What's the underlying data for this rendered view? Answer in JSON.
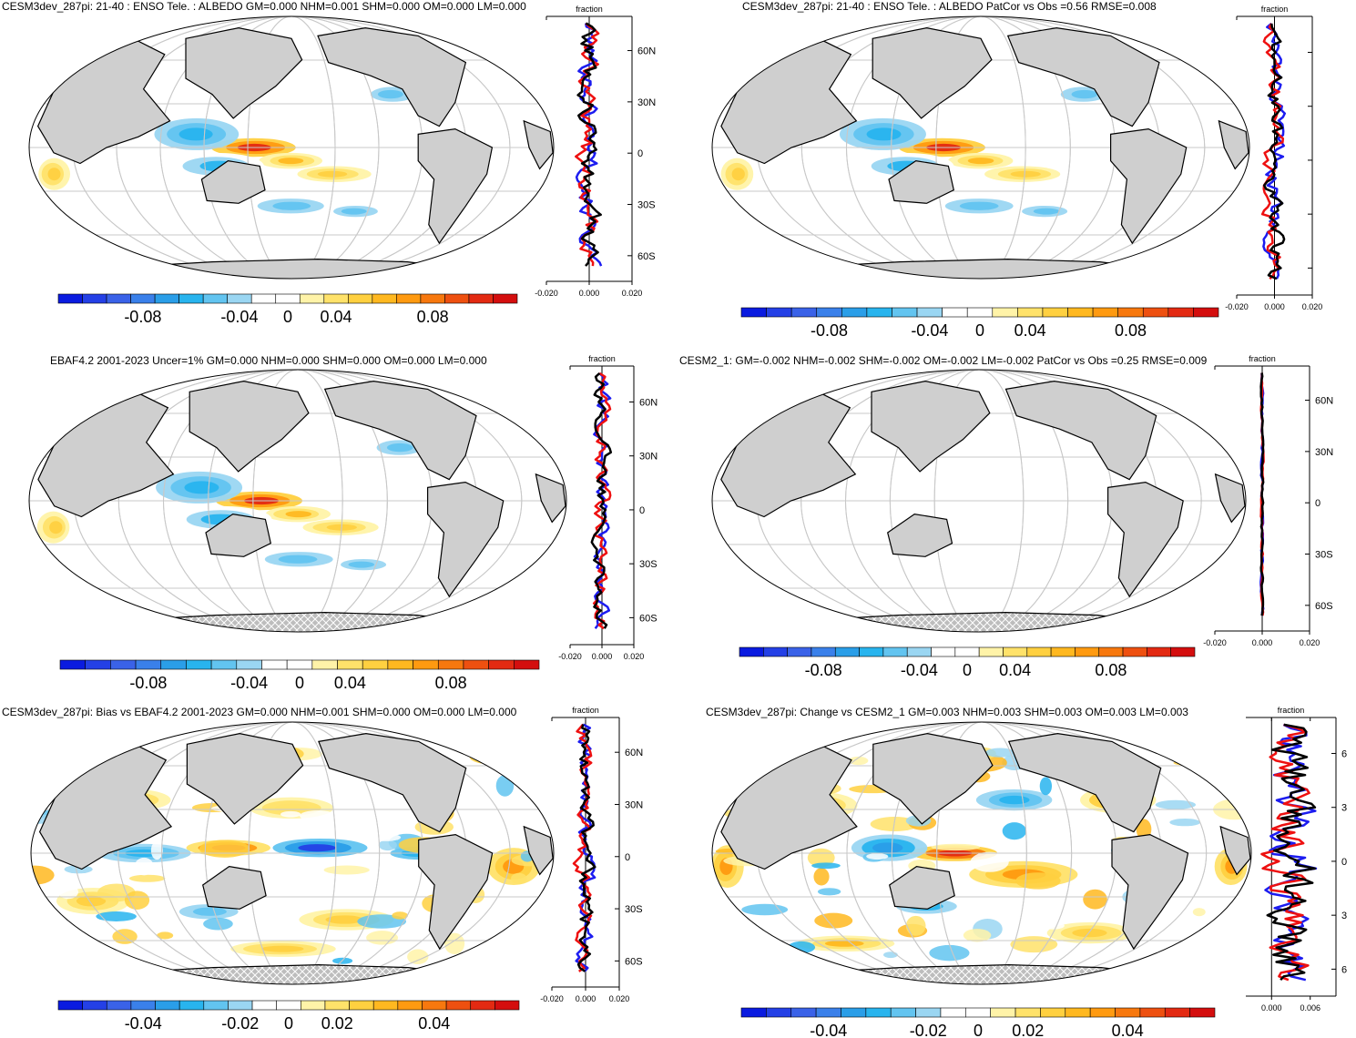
{
  "colors": {
    "ocean": "#ffffff",
    "land": "#cfcfcf",
    "grid": "#c8c8c8",
    "coast": "#000000",
    "zonal_blue": "#1c1cf0",
    "zonal_red": "#ee1010",
    "zonal_black": "#000000",
    "palette": [
      "#0a1be0",
      "#2440e6",
      "#3a62e8",
      "#3a80ea",
      "#2a9ee8",
      "#28b4ee",
      "#62c4f0",
      "#9ad6f2",
      "#ffffff",
      "#ffffff",
      "#fff3a8",
      "#ffe26a",
      "#ffd040",
      "#ffb820",
      "#ff9a10",
      "#f7780e",
      "#ee5010",
      "#e32a12",
      "#d40e0e"
    ]
  },
  "icons": {
    "hatch": "land-ice-hatch-pattern"
  },
  "panels": [
    {
      "title": "CESM3dev_287pi: 21-40 : ENSO Tele. : ALBEDO GM=0.000 NHM=0.001 SHM=0.000 OM=0.000 LM=0.000",
      "colorbar_labels": [
        "-0.08",
        "-0.04",
        "0",
        "0.04",
        "0.08"
      ],
      "zonal_title": "fraction",
      "zonal_x_labels": [
        "-0.020",
        "0.000",
        "0.020"
      ],
      "zonal_y_labels": [
        "60N",
        "30N",
        "0",
        "30S",
        "60S"
      ]
    },
    {
      "title": "CESM3dev_287pi: 21-40 : ENSO Tele. : ALBEDO PatCor vs Obs =0.56 RMSE=0.008",
      "colorbar_labels": [
        "-0.08",
        "-0.04",
        "0",
        "0.04",
        "0.08"
      ],
      "zonal_title": "fraction",
      "zonal_x_labels": [
        "-0.020",
        "0.000",
        "0.020"
      ],
      "zonal_y_labels": []
    },
    {
      "title": "EBAF4.2 2001-2023 Uncer=1% GM=0.000 NHM=0.000 SHM=0.000 OM=0.000 LM=0.000",
      "colorbar_labels": [
        "-0.08",
        "-0.04",
        "0",
        "0.04",
        "0.08"
      ],
      "zonal_title": "fraction",
      "zonal_x_labels": [
        "-0.020",
        "0.000",
        "0.020"
      ],
      "zonal_y_labels": [
        "60N",
        "30N",
        "0",
        "30S",
        "60S"
      ]
    },
    {
      "title": "CESM2_1: GM=-0.002 NHM=-0.002 SHM=-0.002 OM=-0.002 LM=-0.002 PatCor vs Obs =0.25 RMSE=0.009",
      "colorbar_labels": [
        "-0.08",
        "-0.04",
        "0",
        "0.04",
        "0.08"
      ],
      "zonal_title": "fraction",
      "zonal_x_labels": [
        "-0.020",
        "0.000",
        "0.020"
      ],
      "zonal_y_labels": [
        "60N",
        "30N",
        "0",
        "30S",
        "60S"
      ]
    },
    {
      "title": "CESM3dev_287pi: Bias vs EBAF4.2 2001-2023 GM=0.000 NHM=0.001 SHM=0.000 OM=0.000 LM=0.000",
      "colorbar_labels": [
        "-0.04",
        "-0.02",
        "0",
        "0.02",
        "0.04"
      ],
      "zonal_title": "fraction",
      "zonal_x_labels": [
        "-0.020",
        "0.000",
        "0.020"
      ],
      "zonal_y_labels": [
        "60N",
        "30N",
        "0",
        "30S",
        "60S"
      ]
    },
    {
      "title": "CESM3dev_287pi: Change vs CESM2_1 GM=0.003 NHM=0.003 SHM=0.003 OM=0.003 LM=0.003",
      "colorbar_labels": [
        "-0.04",
        "-0.02",
        "0",
        "0.02",
        "0.04"
      ],
      "zonal_title": "fraction",
      "zonal_x_labels": [
        "0.000",
        "0.006"
      ],
      "zonal_y_labels": [
        "6",
        "3",
        "0",
        "3",
        "6"
      ]
    }
  ],
  "chart_data": [
    {
      "type": "heatmap",
      "title": "CESM3dev_287pi: 21-40 : ENSO Tele. : ALBEDO GM=0.000 NHM=0.001 SHM=0.000 OM=0.000 LM=0.000",
      "colorbar_ticks": [
        -0.08,
        -0.04,
        0,
        0.04,
        0.08
      ],
      "zonal_xlim": [
        -0.02,
        0.02
      ],
      "zonal_xlabel": "fraction",
      "zonal_ylim": [
        -75,
        80
      ],
      "zonal_series": [
        "blue",
        "red",
        "black"
      ]
    },
    {
      "type": "heatmap",
      "title": "CESM3dev_287pi: 21-40 : ENSO Tele. : ALBEDO PatCor vs Obs =0.56 RMSE=0.008",
      "colorbar_ticks": [
        -0.08,
        -0.04,
        0,
        0.04,
        0.08
      ],
      "zonal_xlim": [
        -0.02,
        0.02
      ],
      "zonal_xlabel": "fraction",
      "zonal_ylim": [
        -75,
        80
      ],
      "zonal_series": [
        "blue",
        "red",
        "black"
      ]
    },
    {
      "type": "heatmap",
      "title": "EBAF4.2 2001-2023 Uncer=1% GM=0.000 NHM=0.000 SHM=0.000 OM=0.000 LM=0.000",
      "colorbar_ticks": [
        -0.08,
        -0.04,
        0,
        0.04,
        0.08
      ],
      "zonal_xlim": [
        -0.02,
        0.02
      ],
      "zonal_xlabel": "fraction",
      "zonal_ylim": [
        -75,
        80
      ],
      "zonal_series": [
        "blue",
        "red",
        "black"
      ]
    },
    {
      "type": "heatmap",
      "title": "CESM2_1: GM=-0.002 NHM=-0.002 SHM=-0.002 OM=-0.002 LM=-0.002 PatCor vs Obs =0.25 RMSE=0.009",
      "colorbar_ticks": [
        -0.08,
        -0.04,
        0,
        0.04,
        0.08
      ],
      "zonal_xlim": [
        -0.02,
        0.02
      ],
      "zonal_xlabel": "fraction",
      "zonal_ylim": [
        -75,
        80
      ],
      "zonal_series": [
        "blue",
        "red",
        "black"
      ]
    },
    {
      "type": "heatmap",
      "title": "CESM3dev_287pi: Bias vs EBAF4.2 2001-2023 GM=0.000 NHM=0.001 SHM=0.000 OM=0.000 LM=0.000",
      "colorbar_ticks": [
        -0.04,
        -0.02,
        0,
        0.02,
        0.04
      ],
      "zonal_xlim": [
        -0.02,
        0.02
      ],
      "zonal_xlabel": "fraction",
      "zonal_ylim": [
        -75,
        80
      ],
      "zonal_series": [
        "blue",
        "red",
        "black"
      ]
    },
    {
      "type": "heatmap",
      "title": "CESM3dev_287pi: Change vs CESM2_1 GM=0.003 NHM=0.003 SHM=0.003 OM=0.003 LM=0.003",
      "colorbar_ticks": [
        -0.04,
        -0.02,
        0,
        0.02,
        0.04
      ],
      "zonal_xlim": [
        -0.004,
        0.01
      ],
      "zonal_xlabel": "fraction",
      "zonal_ylim": [
        -75,
        80
      ],
      "zonal_series": [
        "blue",
        "red",
        "black"
      ]
    }
  ]
}
